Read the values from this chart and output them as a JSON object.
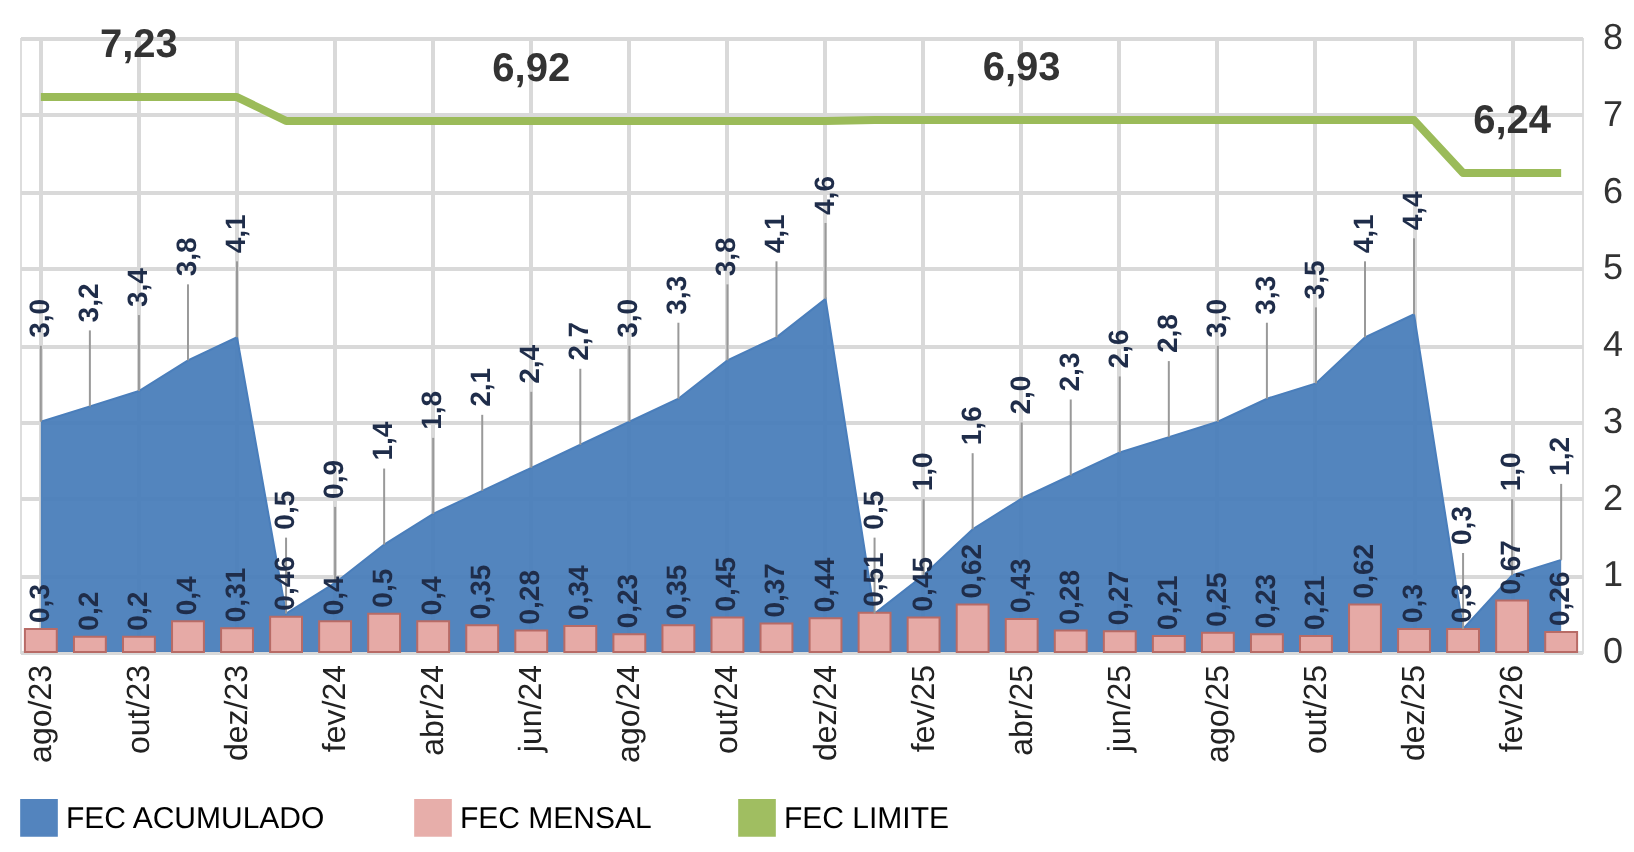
{
  "chart_data": {
    "type": "area",
    "categories": [
      "ago/23",
      null,
      "out/23",
      null,
      "dez/23",
      null,
      "fev/24",
      null,
      "abr/24",
      null,
      "jun/24",
      null,
      "ago/24",
      null,
      "out/24",
      null,
      "dez/24",
      null,
      "fev/25",
      null,
      "abr/25",
      null,
      "jun/25",
      null,
      "ago/25",
      null,
      "out/25",
      null,
      "dez/25",
      null,
      "fev/26",
      null
    ],
    "series": [
      {
        "name": "FEC ACUMULADO",
        "color": "#4a7ebb",
        "values": [
          3.0,
          3.2,
          3.4,
          3.8,
          4.1,
          0.5,
          0.9,
          1.4,
          1.8,
          2.1,
          2.4,
          2.7,
          3.0,
          3.3,
          3.8,
          4.1,
          4.6,
          0.5,
          1.0,
          1.6,
          2.0,
          2.3,
          2.6,
          2.8,
          3.0,
          3.3,
          3.5,
          4.1,
          4.4,
          0.3,
          1.0,
          1.2
        ],
        "value_labels": [
          "3,0",
          "3,2",
          "3,4",
          "3,8",
          "4,1",
          "0,5",
          "0,9",
          "1,4",
          "1,8",
          "2,1",
          "2,4",
          "2,7",
          "3,0",
          "3,3",
          "3,8",
          "4,1",
          "4,6",
          "0,5",
          "1,0",
          "1,6",
          "2,0",
          "2,3",
          "2,6",
          "2,8",
          "3,0",
          "3,3",
          "3,5",
          "4,1",
          "4,4",
          "0,3",
          "1,0",
          "1,2"
        ]
      },
      {
        "name": "FEC MENSAL",
        "type": "bar",
        "color": "#e6aaa6",
        "values": [
          0.3,
          0.2,
          0.2,
          0.4,
          0.31,
          0.46,
          0.4,
          0.5,
          0.4,
          0.35,
          0.28,
          0.34,
          0.23,
          0.35,
          0.45,
          0.37,
          0.44,
          0.51,
          0.45,
          0.62,
          0.43,
          0.28,
          0.27,
          0.21,
          0.25,
          0.23,
          0.21,
          0.62,
          0.3,
          0.3,
          0.67,
          0.26
        ],
        "value_labels": [
          "0,3",
          "0,2",
          "0,2",
          "0,4",
          "0,31",
          "0,46",
          "0,4",
          "0,5",
          "0,4",
          "0,35",
          "0,28",
          "0,34",
          "0,23",
          "0,35",
          "0,45",
          "0,37",
          "0,44",
          "0,51",
          "0,45",
          "0,62",
          "0,43",
          "0,28",
          "0,27",
          "0,21",
          "0,25",
          "0,23",
          "0,21",
          "0,62",
          "0,3",
          "0,3",
          "0,67",
          "0,26"
        ]
      },
      {
        "name": "FEC LIMITE",
        "type": "line",
        "color": "#9bbb59",
        "values": [
          7.23,
          7.23,
          7.23,
          7.23,
          7.23,
          6.92,
          6.92,
          6.92,
          6.92,
          6.92,
          6.92,
          6.92,
          6.92,
          6.92,
          6.92,
          6.92,
          6.92,
          6.93,
          6.93,
          6.93,
          6.93,
          6.93,
          6.93,
          6.93,
          6.93,
          6.93,
          6.93,
          6.93,
          6.93,
          6.24,
          6.24,
          6.24
        ],
        "value_labels": [
          null,
          null,
          "7,23",
          null,
          null,
          null,
          null,
          null,
          null,
          null,
          "6,92",
          null,
          null,
          null,
          null,
          null,
          null,
          null,
          null,
          null,
          "6,93",
          null,
          null,
          null,
          null,
          null,
          null,
          null,
          null,
          null,
          "6,24",
          null
        ]
      }
    ],
    "ylim": [
      0,
      8
    ],
    "yticks": [
      0,
      1,
      2,
      3,
      4,
      5,
      6,
      7,
      8
    ],
    "grid": true,
    "legend": "bottom"
  }
}
